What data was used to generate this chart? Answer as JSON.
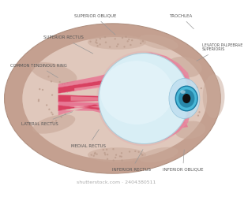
{
  "bg_color": "#ffffff",
  "skull_outer_color": "#c4a090",
  "skull_inner_color": "#d4b0a0",
  "socket_color": "#e0c8bc",
  "bone_spot_color": "#c8a898",
  "eyeball_color": "#d8eef5",
  "eyeball_light": "#eaf6fc",
  "cornea_color": "#c0dff0",
  "iris_color": "#4ab8d8",
  "iris_dark": "#2888aa",
  "pupil_color": "#101010",
  "muscle_dark": "#d84060",
  "muscle_mid": "#e87090",
  "muscle_light": "#f0a0b0",
  "muscle_pale": "#f8c8d0",
  "eyelid_color": "#e888a0",
  "label_color": "#555555",
  "label_fontsize": 4.0,
  "labels": {
    "superior_oblique": "SUPERIOR OBLIQUE",
    "trochlea": "TROCHLEA",
    "levator": "LEVATOR PALPEBRAE\nSUPERIORIS",
    "superior_rectus": "SUPERIOR RECTUS",
    "common_tendinous": "COMMON TENDINOUS RING",
    "lateral_rectus": "LATERAL RECTUS",
    "medial_rectus": "MEDIAL RECTUS",
    "inferior_rectus": "INFERIOR RECTUS",
    "inferior_oblique": "INFERIOR OBLIQUE"
  }
}
